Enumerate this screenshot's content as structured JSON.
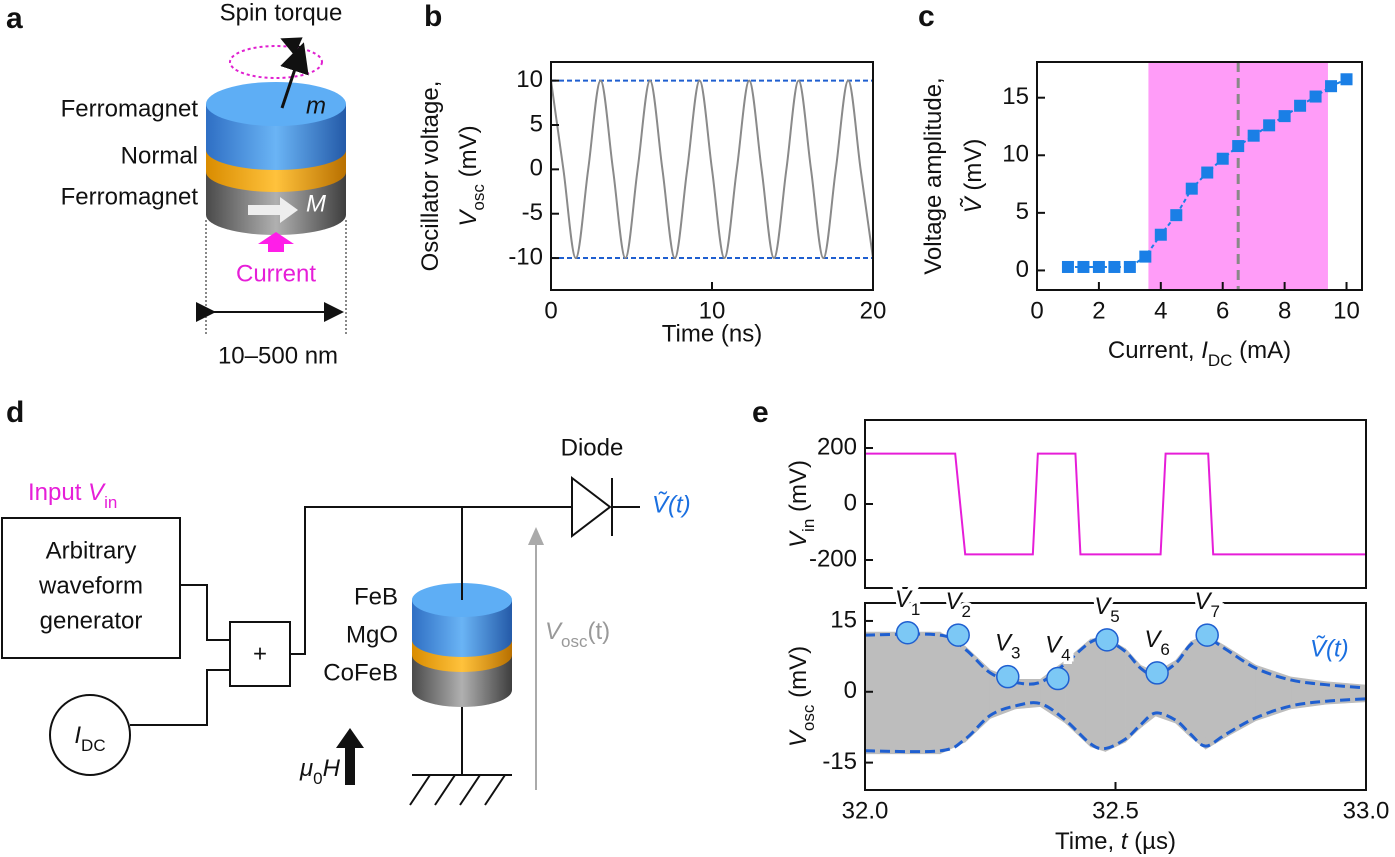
{
  "panel_labels": [
    "a",
    "b",
    "c",
    "d",
    "e"
  ],
  "diagram_a": {
    "annotation": "Spin torque",
    "moment": "m",
    "layers": [
      "Ferromagnet",
      "Normal",
      "Ferromagnet"
    ],
    "fixed": "M",
    "current": "Current",
    "size": "10–500 nm"
  },
  "diagram_d": {
    "input": "Input ",
    "input_symbol": "V",
    "input_sub": "in",
    "generator": [
      "Arbitrary",
      "waveform",
      "generator"
    ],
    "adder": "+",
    "current_symbol": "I",
    "current_sub": "DC",
    "layers": [
      "FeB",
      "MgO",
      "CoFeB"
    ],
    "field_symbol": "μ",
    "field_sub": "0",
    "field_var": "H",
    "diode": "Diode",
    "output": "Ṽ(t)",
    "voltage_symbol": "V",
    "voltage_sub": "osc",
    "voltage_arg": "(t)"
  },
  "chart_data": [
    {
      "type": "line",
      "smooth": true,
      "xlabel": "Time (ns)",
      "ylabel": {
        "text": "Oscillator voltage,",
        "symbol": "V",
        "sub": "osc",
        "unit": " (mV)"
      },
      "x": [
        0,
        0.77,
        1.54,
        2.31,
        3.08,
        3.85,
        4.62,
        5.38,
        6.15,
        6.92,
        7.69,
        8.46,
        9.23,
        10,
        10.77,
        11.54,
        12.31,
        13.08,
        13.85,
        14.62,
        15.38,
        16.15,
        16.92,
        17.69,
        18.46,
        19.23,
        20
      ],
      "series": [
        {
          "color": "#8a8a8a",
          "values": [
            10,
            0,
            -10,
            0,
            10,
            0,
            -10,
            0,
            10,
            0,
            -10,
            0,
            10,
            0,
            -10,
            0,
            10,
            0,
            -10,
            0,
            10,
            0,
            -10,
            0,
            10,
            0,
            -10
          ]
        }
      ],
      "hlines": [
        10,
        -10
      ],
      "hline_color": "#1f5fd0",
      "xlim": [
        0,
        20
      ],
      "ylim": [
        -13.6,
        12.1
      ],
      "xticks": [
        0,
        10,
        20
      ],
      "yticks": [
        -10,
        -5,
        0,
        5,
        10
      ]
    },
    {
      "type": "scatter",
      "xlabel": {
        "text": "Current, ",
        "symbol": "I",
        "sub": "DC",
        "unit": " (mA)"
      },
      "ylabel": {
        "text": "Voltage amplitude,",
        "symbol": "Ṽ",
        "unit": " (mV)"
      },
      "x": [
        1,
        1.5,
        2,
        2.5,
        3,
        3.5,
        4,
        4.5,
        5,
        5.5,
        6,
        6.5,
        7,
        7.5,
        8,
        8.5,
        9,
        9.5,
        10
      ],
      "values": [
        0.3,
        0.3,
        0.3,
        0.3,
        0.3,
        1.2,
        3.1,
        4.8,
        7.1,
        8.5,
        9.7,
        10.8,
        11.7,
        12.6,
        13.4,
        14.3,
        15.1,
        16,
        16.6
      ],
      "color": "#1a7fe6",
      "shade": [
        3.6,
        9.4
      ],
      "shade_color": "#ff9cf8",
      "vline": 6.5,
      "xlim": [
        0,
        10.5
      ],
      "ylim": [
        -1.7,
        18.1
      ],
      "xticks": [
        0,
        2,
        4,
        6,
        8,
        10
      ],
      "yticks": [
        0,
        5,
        10,
        15
      ]
    },
    {
      "type": "line",
      "ylabel": {
        "symbol": "V",
        "sub": "in",
        "unit": " (mV)"
      },
      "x": [
        32.0,
        32.18,
        32.2,
        32.335,
        32.345,
        32.42,
        32.43,
        32.59,
        32.6,
        32.685,
        32.695,
        33.0
      ],
      "series": [
        {
          "color": "#e61ed8",
          "values": [
            180,
            180,
            -180,
            -180,
            180,
            180,
            -180,
            -180,
            180,
            180,
            -180,
            -180
          ]
        }
      ],
      "xlim": [
        32,
        33
      ],
      "ylim": [
        -300,
        300
      ],
      "yticks": [
        -200,
        0,
        200
      ]
    },
    {
      "type": "envelope",
      "xlabel": {
        "text": "Time, ",
        "symbol": "t",
        "unit": " (µs)"
      },
      "ylabel": {
        "symbol": "V",
        "sub": "osc",
        "unit": " (mV)"
      },
      "x": [
        32.0,
        32.15,
        32.2,
        32.25,
        32.3,
        32.35,
        32.4,
        32.45,
        32.48,
        32.52,
        32.55,
        32.58,
        32.62,
        32.65,
        32.68,
        32.72,
        32.78,
        32.85,
        32.92,
        33.0
      ],
      "series": [
        {
          "color": "#1f5fd0",
          "values": [
            12,
            12,
            9,
            4,
            2,
            2,
            6,
            10.5,
            11,
            8.5,
            5,
            3.5,
            6,
            10,
            11.5,
            9,
            5,
            2.5,
            1.5,
            0.8
          ]
        },
        {
          "color": "#1f5fd0",
          "values": [
            -12.5,
            -12.5,
            -10,
            -5,
            -3,
            -2.5,
            -6,
            -11,
            -12,
            -10,
            -7,
            -4.5,
            -6,
            -9,
            -11.5,
            -9,
            -5.5,
            -3,
            -2,
            -1.5
          ]
        }
      ],
      "fill_color": "#bdbdbd",
      "annotation": "Ṽ(t)",
      "points": {
        "x": [
          32.085,
          32.186,
          32.285,
          32.385,
          32.483,
          32.583,
          32.683
        ],
        "values": [
          12.5,
          12,
          3.2,
          2.8,
          11,
          4,
          12
        ],
        "symbol": "V",
        "labels": [
          "1",
          "2",
          "3",
          "4",
          "5",
          "6",
          "7"
        ],
        "color": "#7cc8f5"
      },
      "xlim": [
        32,
        33
      ],
      "ylim": [
        -20.8,
        18.8
      ],
      "xticks": [
        {
          "value": 32,
          "label": "32.0"
        },
        {
          "value": 32.5,
          "label": "32.5"
        },
        {
          "value": 33,
          "label": "33.0"
        }
      ],
      "yticks": [
        -15,
        0,
        15
      ]
    }
  ]
}
